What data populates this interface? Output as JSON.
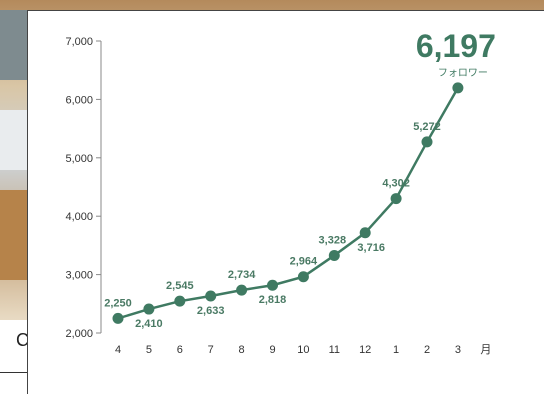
{
  "chart_data": {
    "type": "line",
    "categories": [
      "4",
      "5",
      "6",
      "7",
      "8",
      "9",
      "10",
      "11",
      "12",
      "1",
      "2",
      "3"
    ],
    "values": [
      2250,
      2410,
      2545,
      2633,
      2734,
      2818,
      2964,
      3328,
      3716,
      4302,
      5272,
      6197
    ],
    "labels": [
      "2,250",
      "2,410",
      "2,545",
      "2,633",
      "2,734",
      "2,818",
      "2,964",
      "3,328",
      "3,716",
      "4,302",
      "5,272"
    ],
    "y_ticks": [
      "2,000",
      "3,000",
      "4,000",
      "5,000",
      "6,000",
      "7,000"
    ],
    "y_tick_values": [
      2000,
      3000,
      4000,
      5000,
      6000,
      7000
    ],
    "ylim": [
      2000,
      7000
    ],
    "x_unit": "月",
    "headline_value": "6,197",
    "headline_unit": "フォロワー",
    "line_color": "#3f7a62",
    "grid": false
  },
  "side_text": "C"
}
